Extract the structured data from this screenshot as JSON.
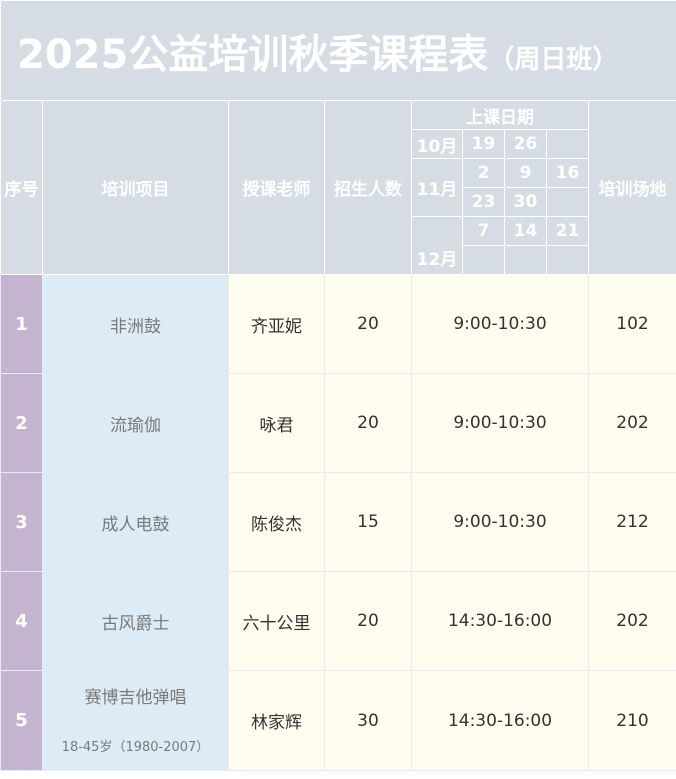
{
  "title": {
    "main": "2025公益培训秋季课程表",
    "sub": "（周日班）"
  },
  "headers": {
    "index": "序号",
    "project": "培训项目",
    "teacher": "授课老师",
    "enrollment": "招生人数",
    "dates": "上课日期",
    "venue": "培训场地"
  },
  "calendar": {
    "oct": {
      "month": "10月",
      "days": [
        "19",
        "26",
        ""
      ]
    },
    "nov": {
      "month": "11月",
      "days1": [
        "2",
        "9",
        "16"
      ],
      "days2": [
        "23",
        "30",
        ""
      ]
    },
    "dec": {
      "month": "12月",
      "days1": [
        "7",
        "14",
        "21"
      ],
      "days2": [
        "",
        "",
        ""
      ]
    }
  },
  "rows": [
    {
      "index": "1",
      "project": "非洲鼓",
      "teacher": "齐亚妮",
      "count": "20",
      "time": "9:00-10:30",
      "venue": "102"
    },
    {
      "index": "2",
      "project": "流瑜伽",
      "teacher": "咏君",
      "count": "20",
      "time": "9:00-10:30",
      "venue": "202"
    },
    {
      "index": "3",
      "project": "成人电鼓",
      "teacher": "陈俊杰",
      "count": "15",
      "time": "9:00-10:30",
      "venue": "212"
    },
    {
      "index": "4",
      "project": "古风爵士",
      "teacher": "六十公里",
      "count": "20",
      "time": "14:30-16:00",
      "venue": "202"
    },
    {
      "index": "5",
      "project": "赛博吉他弹唱",
      "note": "18-45岁（1980-2007）",
      "teacher": "林家辉",
      "count": "30",
      "time": "14:30-16:00",
      "venue": "210"
    }
  ],
  "colors": {
    "header": "#d6dce4",
    "index": "#c5b4cf",
    "project": "#ddebf7",
    "body": "#fffdf0"
  }
}
